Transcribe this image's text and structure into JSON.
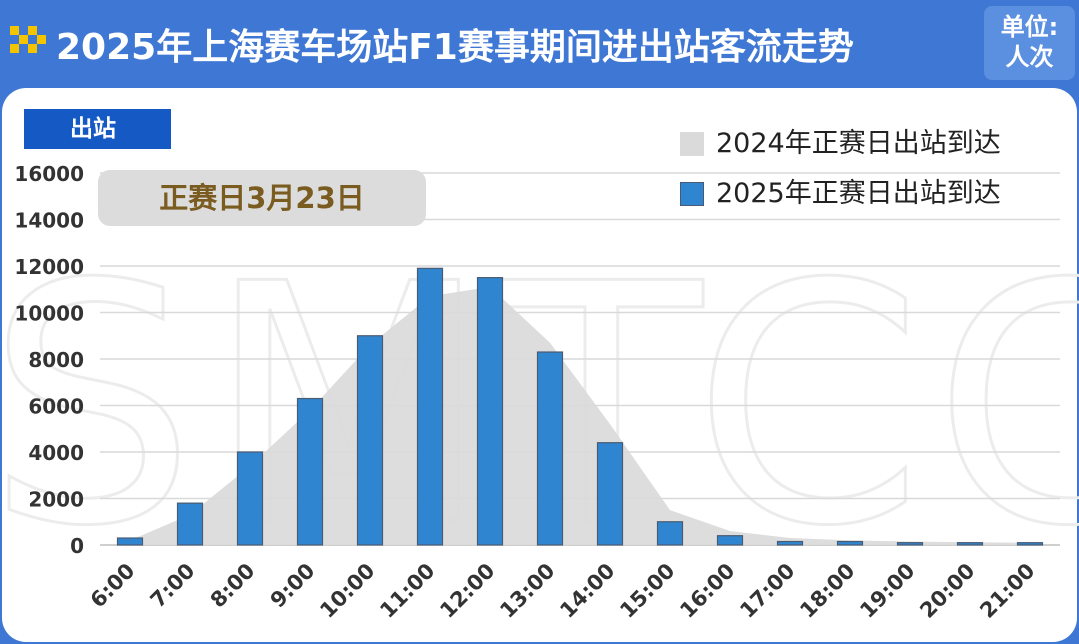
{
  "header": {
    "title": "2025年上海赛车场站F1赛事期间进出站客流走势",
    "unit_line1": "单位:",
    "unit_line2": "人次"
  },
  "panel": {
    "tag_label": "出站",
    "date_label": "正赛日3月23日",
    "watermark": "SMTCC"
  },
  "colors": {
    "header_bg": "#3f78d4",
    "tag_bg": "#1559c4",
    "bar_fill": "#2f85d0",
    "bar_stroke": "#4a5a70",
    "area_fill": "#dadada"
  },
  "legend": [
    {
      "label": "2024年正赛日出站到达",
      "color": "#dadada",
      "series": "area"
    },
    {
      "label": "2025年正赛日出站到达",
      "color": "#2f85d0",
      "series": "bar"
    }
  ],
  "chart_data": {
    "type": "bar",
    "categories": [
      "6:00",
      "7:00",
      "8:00",
      "9:00",
      "10:00",
      "11:00",
      "12:00",
      "13:00",
      "14:00",
      "15:00",
      "16:00",
      "17:00",
      "18:00",
      "19:00",
      "20:00",
      "21:00"
    ],
    "ylim": [
      0,
      16000
    ],
    "yticks": [
      0,
      2000,
      4000,
      6000,
      8000,
      10000,
      12000,
      14000,
      16000
    ],
    "grid": true,
    "legend_position": "top-right",
    "series": [
      {
        "name": "2024年正赛日出站到达",
        "type": "area",
        "values": [
          200,
          1300,
          3400,
          5800,
          8600,
          10700,
          11100,
          8700,
          5200,
          1500,
          600,
          300,
          200,
          150,
          120,
          100
        ]
      },
      {
        "name": "2025年正赛日出站到达",
        "type": "bar",
        "values": [
          300,
          1800,
          4000,
          6300,
          9000,
          11900,
          11500,
          8300,
          4400,
          1000,
          400,
          150,
          150,
          100,
          100,
          100
        ]
      }
    ]
  }
}
